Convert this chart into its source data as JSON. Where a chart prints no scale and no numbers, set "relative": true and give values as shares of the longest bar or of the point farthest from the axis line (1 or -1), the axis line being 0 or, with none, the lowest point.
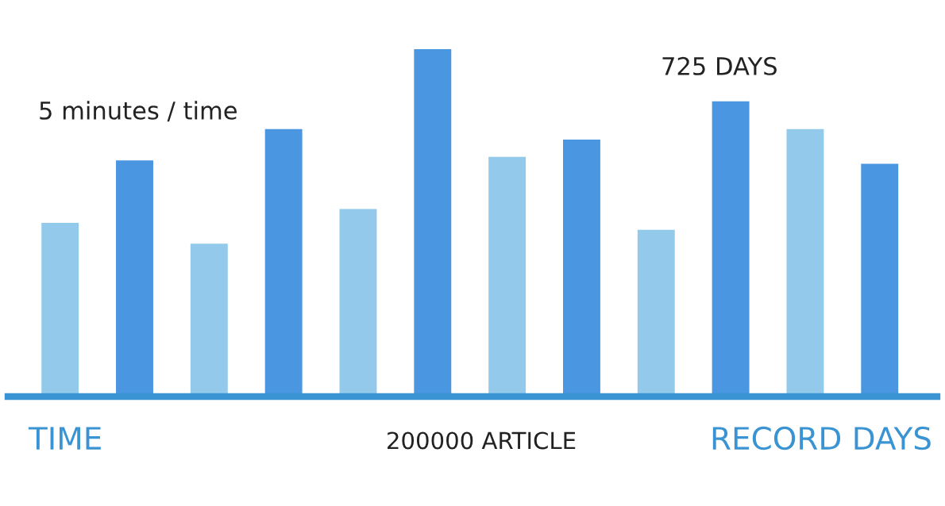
{
  "chart_data": {
    "type": "bar",
    "relative": true,
    "categories": [
      null,
      null,
      null,
      null,
      null,
      null,
      null,
      null,
      null,
      null,
      null,
      null
    ],
    "values": [
      0.5,
      0.68,
      0.44,
      0.77,
      0.54,
      1,
      0.69,
      0.74,
      0.48,
      0.85,
      0.77,
      0.67
    ],
    "colors": [
      "#93c9ea",
      "#4a96e0",
      "#93c9ea",
      "#4a96e0",
      "#93c9ea",
      "#4a96e0",
      "#93c9ea",
      "#4a96e0",
      "#93c9ea",
      "#4a96e0",
      "#93c9ea",
      "#4a96e0"
    ],
    "annotations": [
      "5 minutes / time",
      "725 DAYS",
      "TIME",
      "200000 ARTICLE",
      "RECORD DAYS"
    ]
  }
}
